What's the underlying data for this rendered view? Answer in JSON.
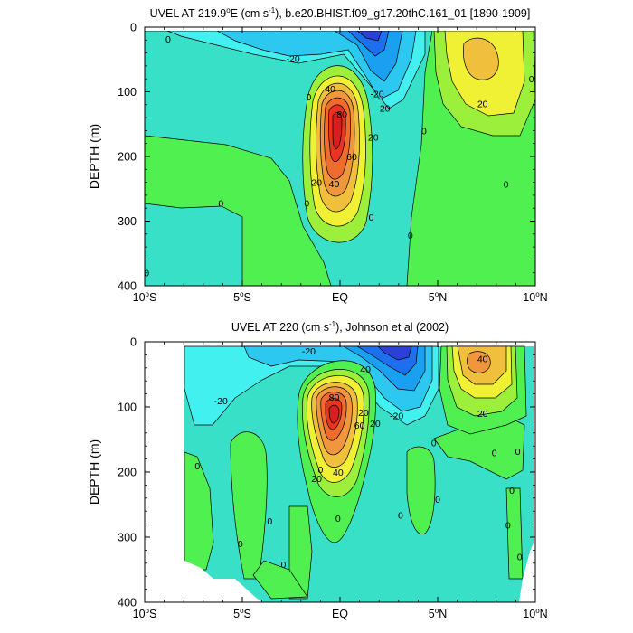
{
  "chart_data": [
    {
      "type": "heatmap",
      "title_main": "UVEL AT 219.9",
      "title_sup1": "o",
      "title_mid": "E (cm s",
      "title_sup2": "-1",
      "title_end": "), b.e20.BHIST.f09_g17.20thC.161_01 [1890-1909]",
      "ylabel": "DEPTH (m)",
      "x_ticks": [
        {
          "value": -10,
          "num": "10",
          "deg": "o",
          "hem": "S"
        },
        {
          "value": -5,
          "num": "5",
          "deg": "o",
          "hem": "S"
        },
        {
          "value": 0,
          "num": "",
          "deg": "",
          "hem": "EQ"
        },
        {
          "value": 5,
          "num": "5",
          "deg": "o",
          "hem": "N"
        },
        {
          "value": 10,
          "num": "10",
          "deg": "o",
          "hem": "N"
        }
      ],
      "y_ticks": [
        0,
        100,
        200,
        300,
        400
      ],
      "xlim": [
        -10,
        10
      ],
      "ylim": [
        0,
        400
      ],
      "contour_labels": [
        {
          "x": -8.8,
          "y": 18,
          "text": "0"
        },
        {
          "x": -2.4,
          "y": 48,
          "text": "-20"
        },
        {
          "x": 1.9,
          "y": 103,
          "text": "-20"
        },
        {
          "x": 2.3,
          "y": 125,
          "text": "20"
        },
        {
          "x": -1.6,
          "y": 108,
          "text": "0"
        },
        {
          "x": -0.5,
          "y": 95,
          "text": "40"
        },
        {
          "x": 0.1,
          "y": 134,
          "text": "80"
        },
        {
          "x": 1.7,
          "y": 170,
          "text": "20"
        },
        {
          "x": 0.6,
          "y": 200,
          "text": "60"
        },
        {
          "x": -1.2,
          "y": 240,
          "text": "20"
        },
        {
          "x": -0.3,
          "y": 242,
          "text": "40"
        },
        {
          "x": -1.7,
          "y": 272,
          "text": "0"
        },
        {
          "x": 1.6,
          "y": 294,
          "text": "0"
        },
        {
          "x": 4.3,
          "y": 160,
          "text": "0"
        },
        {
          "x": 3.6,
          "y": 322,
          "text": "0"
        },
        {
          "x": 7.3,
          "y": 118,
          "text": "20"
        },
        {
          "x": 9.8,
          "y": 80,
          "text": "0"
        },
        {
          "x": 8.5,
          "y": 243,
          "text": "0"
        },
        {
          "x": -6.1,
          "y": 272,
          "text": "0"
        },
        {
          "x": -9.9,
          "y": 380,
          "text": "0"
        }
      ]
    },
    {
      "type": "heatmap",
      "title_main": "UVEL AT 220 (cm s",
      "title_sup2": "-1",
      "title_end": "), Johnson et al (2002)",
      "ylabel": "DEPTH (m)",
      "x_ticks": [
        {
          "value": -10,
          "num": "10",
          "deg": "o",
          "hem": "S"
        },
        {
          "value": -5,
          "num": "5",
          "deg": "o",
          "hem": "S"
        },
        {
          "value": 0,
          "num": "",
          "deg": "",
          "hem": "EQ"
        },
        {
          "value": 5,
          "num": "5",
          "deg": "o",
          "hem": "N"
        },
        {
          "value": 10,
          "num": "10",
          "deg": "o",
          "hem": "N"
        }
      ],
      "y_ticks": [
        0,
        100,
        200,
        300,
        400
      ],
      "xlim": [
        -10,
        10
      ],
      "ylim": [
        0,
        400
      ],
      "contour_labels": [
        {
          "x": -1.6,
          "y": 14,
          "text": "-20"
        },
        {
          "x": 1.3,
          "y": 42,
          "text": "40"
        },
        {
          "x": 7.3,
          "y": 26,
          "text": "40"
        },
        {
          "x": -6.1,
          "y": 90,
          "text": "-20"
        },
        {
          "x": -0.3,
          "y": 85,
          "text": "80"
        },
        {
          "x": 1.2,
          "y": 108,
          "text": "20"
        },
        {
          "x": 2.9,
          "y": 113,
          "text": "-20"
        },
        {
          "x": 1.8,
          "y": 125,
          "text": "20"
        },
        {
          "x": 7.3,
          "y": 110,
          "text": "20"
        },
        {
          "x": 1.0,
          "y": 128,
          "text": "60"
        },
        {
          "x": -1.0,
          "y": 196,
          "text": "0"
        },
        {
          "x": -1.2,
          "y": 210,
          "text": "20"
        },
        {
          "x": -0.1,
          "y": 200,
          "text": "40"
        },
        {
          "x": 4.8,
          "y": 155,
          "text": "0"
        },
        {
          "x": 7.9,
          "y": 170,
          "text": "0"
        },
        {
          "x": 9.1,
          "y": 168,
          "text": "0"
        },
        {
          "x": -7.3,
          "y": 190,
          "text": "0"
        },
        {
          "x": -5.1,
          "y": 310,
          "text": "0"
        },
        {
          "x": 3.1,
          "y": 266,
          "text": "0"
        },
        {
          "x": 5.0,
          "y": 242,
          "text": "0"
        },
        {
          "x": -0.1,
          "y": 271,
          "text": "0"
        },
        {
          "x": -3.6,
          "y": 275,
          "text": "0"
        },
        {
          "x": -2.9,
          "y": 342,
          "text": "0"
        },
        {
          "x": 8.8,
          "y": 228,
          "text": "0"
        },
        {
          "x": 8.6,
          "y": 281,
          "text": "0"
        },
        {
          "x": 9.2,
          "y": 330,
          "text": "0"
        }
      ]
    }
  ]
}
